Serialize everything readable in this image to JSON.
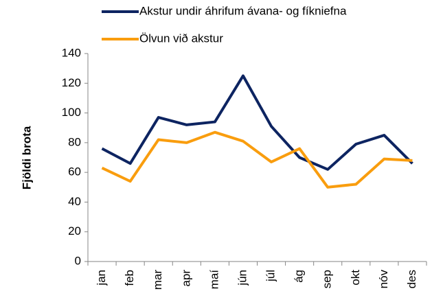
{
  "chart_data": {
    "type": "line",
    "categories": [
      "jan",
      "feb",
      "mar",
      "apr",
      "maí",
      "jún",
      "júl",
      "ág",
      "sep",
      "okt",
      "nóv",
      "des"
    ],
    "series": [
      {
        "name": "Akstur undir áhrifum ávana- og fíkniefna",
        "color": "#0d2461",
        "values": [
          76,
          66,
          97,
          92,
          94,
          125,
          91,
          70,
          62,
          79,
          85,
          66
        ]
      },
      {
        "name": "Ölvun við akstur",
        "color": "#f99d0e",
        "values": [
          63,
          54,
          82,
          80,
          87,
          81,
          67,
          76,
          50,
          52,
          69,
          68
        ]
      }
    ],
    "ylabel": "Fjöldi brota",
    "ylim": [
      0,
      140
    ],
    "yticks": [
      0,
      20,
      40,
      60,
      80,
      100,
      120,
      140
    ],
    "grid": false,
    "legend": "top"
  }
}
